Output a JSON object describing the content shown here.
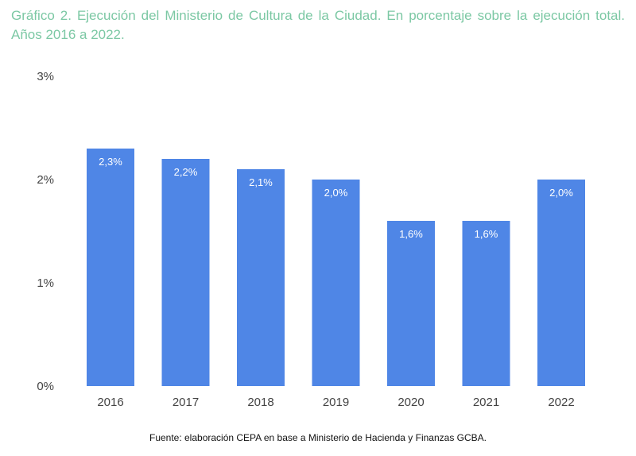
{
  "title": "Gráfico 2. Ejecución del Ministerio de Cultura de la Ciudad. En porcentaje sobre la ejecución total. Años 2016 a 2022.",
  "source": "Fuente: elaboración CEPA en base a Ministerio de Hacienda y Finanzas GCBA.",
  "colors": {
    "bar": "#4f86e6",
    "title": "#7cc8a4"
  },
  "chart_data": {
    "type": "bar",
    "title": "Gráfico 2. Ejecución del Ministerio de Cultura de la Ciudad. En porcentaje sobre la ejecución total. Años 2016 a 2022.",
    "categories": [
      "2016",
      "2017",
      "2018",
      "2019",
      "2020",
      "2021",
      "2022"
    ],
    "values": [
      2.3,
      2.2,
      2.1,
      2.0,
      1.6,
      1.6,
      2.0
    ],
    "data_labels": [
      "2,3%",
      "2,2%",
      "2,1%",
      "2,0%",
      "1,6%",
      "1,6%",
      "2,0%"
    ],
    "yticks": [
      0,
      1,
      2,
      3
    ],
    "ytick_labels": [
      "0%",
      "1%",
      "2%",
      "3%"
    ],
    "ylim": [
      0,
      3
    ],
    "xlabel": "",
    "ylabel": "",
    "grid": false,
    "legend": "none"
  }
}
